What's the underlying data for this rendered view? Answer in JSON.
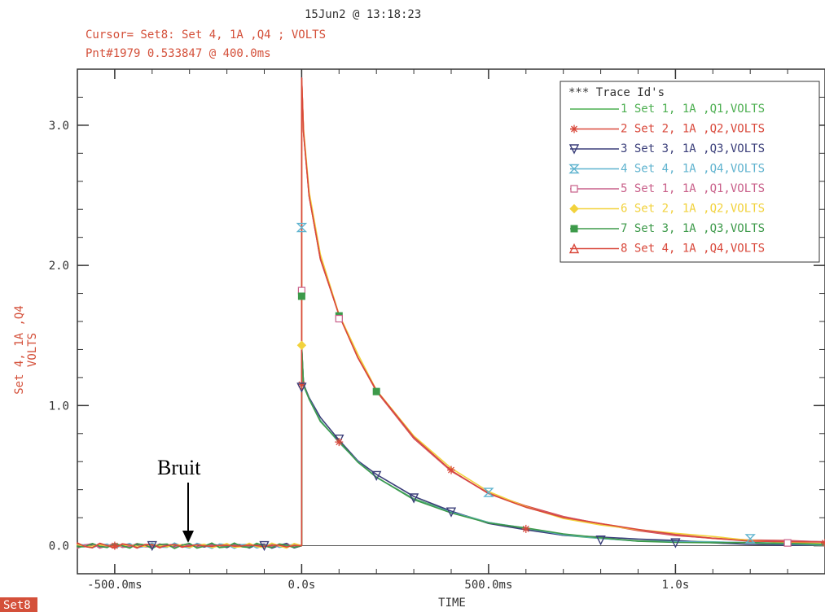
{
  "header": {
    "timestamp": "15Jun2 @ 13:18:23",
    "cursor": "Cursor= Set8: Set 4, 1A  ,Q4  ; VOLTS",
    "point": "Pnt#1979  0.533847 @ 400.0ms"
  },
  "colors": {
    "accent_red": "#d4503a",
    "axis": "#333333",
    "green": "#4caf50",
    "red": "#d9483b",
    "navy": "#3b3f7a",
    "cyan": "#5fb3cf",
    "pink": "#c9608a",
    "yellow": "#f2d23c",
    "green2": "#3d9a4a",
    "red2": "#d9483b"
  },
  "footer": {
    "set_label": "Set8"
  },
  "annotation": {
    "text": "Bruit"
  },
  "chart_data": {
    "type": "line",
    "ylabel_line1": "Set 4, 1A  ,Q4",
    "ylabel_line2": "VOLTS",
    "xlabel": "TIME",
    "xlim": [
      -0.6,
      1.4
    ],
    "ylim": [
      -0.2,
      3.4
    ],
    "x_ticks": [
      {
        "value": -0.5,
        "label": "-500.0ms"
      },
      {
        "value": 0.0,
        "label": "0.0s"
      },
      {
        "value": 0.5,
        "label": "500.0ms"
      },
      {
        "value": 1.0,
        "label": "1.0s"
      }
    ],
    "y_ticks": [
      {
        "value": 0.0,
        "label": "0.0"
      },
      {
        "value": 1.0,
        "label": "1.0"
      },
      {
        "value": 2.0,
        "label": "2.0"
      },
      {
        "value": 3.0,
        "label": "3.0"
      }
    ],
    "legend_title": "*** Trace Id's",
    "legend_position": "top-right",
    "series": [
      {
        "label": "1 Set 1, 1A  ,Q1,VOLTS",
        "color": "#4caf50",
        "marker": "none",
        "group": "fast"
      },
      {
        "label": "2 Set 2, 1A  ,Q2,VOLTS",
        "color": "#d9483b",
        "marker": "star",
        "group": "slow"
      },
      {
        "label": "3 Set 3, 1A  ,Q3,VOLTS",
        "color": "#3b3f7a",
        "marker": "tri-down",
        "group": "fast"
      },
      {
        "label": "4 Set 4, 1A  ,Q4,VOLTS",
        "color": "#5fb3cf",
        "marker": "hourglass",
        "group": "fast"
      },
      {
        "label": "5 Set 1, 1A  ,Q1,VOLTS",
        "color": "#c9608a",
        "marker": "square",
        "group": "slow"
      },
      {
        "label": "6 Set 2, 1A  ,Q2,VOLTS",
        "color": "#f2d23c",
        "marker": "diamond",
        "group": "slow"
      },
      {
        "label": "7 Set 3, 1A  ,Q3,VOLTS",
        "color": "#3d9a4a",
        "marker": "fsquare",
        "group": "fast"
      },
      {
        "label": "8 Set 4, 1A  ,Q4,VOLTS",
        "color": "#d9483b",
        "marker": "triangle",
        "group": "slow"
      }
    ],
    "curves": {
      "slow": {
        "x": [
          0.0,
          0.005,
          0.02,
          0.05,
          0.1,
          0.15,
          0.2,
          0.3,
          0.4,
          0.5,
          0.6,
          0.7,
          0.8,
          0.9,
          1.0,
          1.1,
          1.2,
          1.3,
          1.4
        ],
        "y": [
          3.35,
          2.95,
          2.5,
          2.05,
          1.64,
          1.35,
          1.1,
          0.77,
          0.54,
          0.38,
          0.28,
          0.2,
          0.15,
          0.11,
          0.08,
          0.06,
          0.04,
          0.03,
          0.02
        ]
      },
      "fast": {
        "x": [
          0.0,
          0.005,
          0.02,
          0.05,
          0.1,
          0.15,
          0.2,
          0.3,
          0.4,
          0.5,
          0.6,
          0.7,
          0.8,
          0.9,
          1.0,
          1.1,
          1.2,
          1.3,
          1.4
        ],
        "y": [
          1.43,
          1.15,
          1.05,
          0.9,
          0.75,
          0.6,
          0.5,
          0.34,
          0.24,
          0.16,
          0.12,
          0.08,
          0.06,
          0.04,
          0.03,
          0.02,
          0.015,
          0.01,
          0.01
        ]
      },
      "baseline_y": 0.0
    },
    "markers": [
      {
        "series": 1,
        "x": 0.0,
        "y": 0.34
      },
      {
        "series": 4,
        "x": 0.0,
        "y": 2.27
      },
      {
        "series": 5,
        "x": 0.0,
        "y": 1.82
      },
      {
        "series": 7,
        "x": 0.0,
        "y": 1.78
      },
      {
        "series": 6,
        "x": 0.0,
        "y": 1.43
      },
      {
        "series": 2,
        "x": 0.0,
        "y": 1.15
      },
      {
        "series": 3,
        "x": 0.0,
        "y": 1.13
      },
      {
        "series": 7,
        "x": 0.1,
        "y": 1.64
      },
      {
        "series": 5,
        "x": 0.1,
        "y": 1.62
      },
      {
        "series": 7,
        "x": 0.2,
        "y": 1.1
      },
      {
        "series": 1,
        "x": 0.2,
        "y": 1.1
      },
      {
        "series": 1,
        "x": 0.3,
        "y": 0.77
      },
      {
        "series": 2,
        "x": 0.4,
        "y": 0.54
      },
      {
        "series": 4,
        "x": 0.5,
        "y": 0.38
      },
      {
        "series": 3,
        "x": 0.1,
        "y": 0.76
      },
      {
        "series": 2,
        "x": 0.1,
        "y": 0.74
      },
      {
        "series": 3,
        "x": 0.2,
        "y": 0.5
      },
      {
        "series": 3,
        "x": 0.3,
        "y": 0.34
      },
      {
        "series": 3,
        "x": 0.4,
        "y": 0.24
      },
      {
        "series": 2,
        "x": 0.6,
        "y": 0.12
      },
      {
        "series": 3,
        "x": 0.8,
        "y": 0.04
      },
      {
        "series": 3,
        "x": 1.0,
        "y": 0.02
      },
      {
        "series": 4,
        "x": 1.2,
        "y": 0.05
      },
      {
        "series": 5,
        "x": 1.3,
        "y": 0.02
      },
      {
        "series": 2,
        "x": 1.4,
        "y": 0.02
      },
      {
        "series": 2,
        "x": -0.5,
        "y": 0.0
      },
      {
        "series": 3,
        "x": -0.4,
        "y": 0.0
      },
      {
        "series": 1,
        "x": -0.3,
        "y": 0.0
      },
      {
        "series": 1,
        "x": -0.2,
        "y": 0.0
      },
      {
        "series": 3,
        "x": -0.1,
        "y": 0.0
      }
    ]
  }
}
